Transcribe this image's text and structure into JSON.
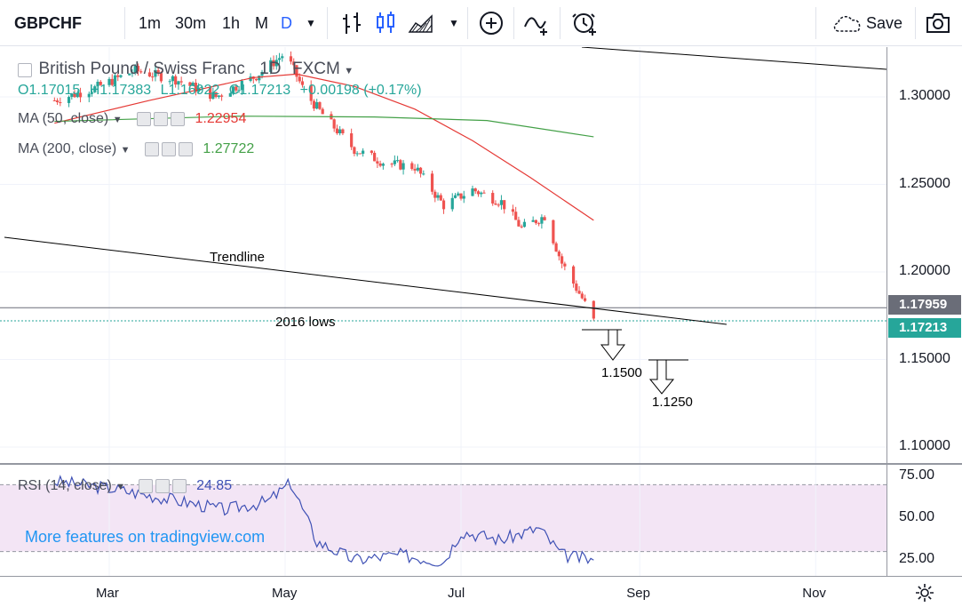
{
  "toolbar": {
    "symbol": "GBPCHF",
    "intervals": [
      "1m",
      "30m",
      "1h",
      "M",
      "D"
    ],
    "active_interval": "D",
    "save_label": "Save",
    "icons": [
      "bars-style-icon",
      "candles-style-icon",
      "area-style-icon",
      "chevron-down-icon",
      "add-compare-icon",
      "indicators-icon",
      "alert-icon",
      "cloud-save-icon",
      "camera-icon"
    ]
  },
  "legend": {
    "title": "British Pound / Swiss Franc",
    "interval": "1D",
    "exchange": "FXCM",
    "ohlc": {
      "o": "O1.17015",
      "h": "H1.17383",
      "l": "L1.16922",
      "c": "C1.17213",
      "change": "+0.00198 (+0.17%)"
    },
    "ma50": {
      "label": "MA (50, close)",
      "value": "1.22954",
      "color": "#e53935"
    },
    "ma200": {
      "label": "MA (200, close)",
      "value": "1.27722",
      "color": "#43a047"
    }
  },
  "rsi_legend": {
    "label": "RSI (14, close)",
    "value": "24.85"
  },
  "annotations": {
    "trendline": "Trendline",
    "lows": "2016 lows",
    "target1": "1.1500",
    "target2": "1.1250"
  },
  "price_tags": {
    "line_level": "1.17959",
    "last_price": "1.17213"
  },
  "watermark": "More features on tradingview.com",
  "colors": {
    "up": "#26a69a",
    "down": "#ef5350",
    "rsi": "#3f51b5",
    "rsi_band": "#f3e5f5",
    "active": "#2962ff"
  },
  "chart_data": [
    {
      "type": "candlestick",
      "title": "British Pound / Swiss Franc",
      "x_ticks": [
        "Mar",
        "May",
        "Jul",
        "Sep",
        "Nov"
      ],
      "y_ticks": [
        "1.30000",
        "1.25000",
        "1.20000",
        "1.15000",
        "1.10000"
      ],
      "ylim": [
        1.095,
        1.33
      ],
      "grid": true,
      "approx_close_path": [
        {
          "x": "Feb 10",
          "y": 1.298
        },
        {
          "x": "Feb 24",
          "y": 1.305
        },
        {
          "x": "Mar 10",
          "y": 1.315
        },
        {
          "x": "Mar 24",
          "y": 1.31
        },
        {
          "x": "Apr 7",
          "y": 1.3
        },
        {
          "x": "Apr 21",
          "y": 1.312
        },
        {
          "x": "May 1",
          "y": 1.325
        },
        {
          "x": "May 8",
          "y": 1.302
        },
        {
          "x": "May 15",
          "y": 1.288
        },
        {
          "x": "May 25",
          "y": 1.27
        },
        {
          "x": "Jun 5",
          "y": 1.262
        },
        {
          "x": "Jun 15",
          "y": 1.26
        },
        {
          "x": "Jun 25",
          "y": 1.238
        },
        {
          "x": "Jul 5",
          "y": 1.247
        },
        {
          "x": "Jul 15",
          "y": 1.24
        },
        {
          "x": "Jul 22",
          "y": 1.225
        },
        {
          "x": "Jul 30",
          "y": 1.232
        },
        {
          "x": "Aug 5",
          "y": 1.205
        },
        {
          "x": "Aug 12",
          "y": 1.185
        },
        {
          "x": "Aug 16",
          "y": 1.172
        }
      ],
      "ma50": [
        {
          "x": "Feb 10",
          "y": 1.285
        },
        {
          "x": "Mar 15",
          "y": 1.298
        },
        {
          "x": "Apr 20",
          "y": 1.311
        },
        {
          "x": "May 5",
          "y": 1.313
        },
        {
          "x": "May 25",
          "y": 1.306
        },
        {
          "x": "Jun 15",
          "y": 1.293
        },
        {
          "x": "Jul 5",
          "y": 1.275
        },
        {
          "x": "Jul 25",
          "y": 1.254
        },
        {
          "x": "Aug 16",
          "y": 1.2295
        }
      ],
      "ma200": [
        {
          "x": "Feb 10",
          "y": 1.286
        },
        {
          "x": "Apr 15",
          "y": 1.289
        },
        {
          "x": "Jun 1",
          "y": 1.2885
        },
        {
          "x": "Jul 10",
          "y": 1.2865
        },
        {
          "x": "Aug 16",
          "y": 1.2772
        }
      ],
      "horizontal_lines": [
        1.17959,
        1.1721
      ],
      "last_price": 1.17213
    },
    {
      "type": "line",
      "title": "RSI (14, close)",
      "y_ticks": [
        "75.00",
        "50.00",
        "25.00"
      ],
      "ylim": [
        10,
        85
      ],
      "band": [
        30,
        70
      ],
      "last_value": 24.85,
      "approx_points": [
        {
          "x": "Feb 10",
          "y": 72
        },
        {
          "x": "Mar 1",
          "y": 68
        },
        {
          "x": "Mar 20",
          "y": 62
        },
        {
          "x": "Apr 10",
          "y": 55
        },
        {
          "x": "Apr 25",
          "y": 60
        },
        {
          "x": "May 3",
          "y": 71
        },
        {
          "x": "May 12",
          "y": 36
        },
        {
          "x": "May 25",
          "y": 25
        },
        {
          "x": "Jun 10",
          "y": 28
        },
        {
          "x": "Jun 25",
          "y": 24
        },
        {
          "x": "Jul 1",
          "y": 42
        },
        {
          "x": "Jul 15",
          "y": 37
        },
        {
          "x": "Jul 28",
          "y": 44
        },
        {
          "x": "Aug 5",
          "y": 28
        },
        {
          "x": "Aug 16",
          "y": 24.85
        }
      ]
    }
  ]
}
